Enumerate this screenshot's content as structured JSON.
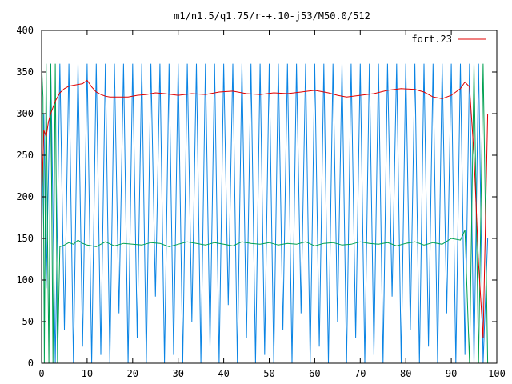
{
  "chart_data": {
    "type": "line",
    "title": "m1/n1.5/q1.75/r-+.10-j53/M50.0/512",
    "xlabel": "",
    "ylabel": "",
    "xlim": [
      0,
      100
    ],
    "ylim": [
      0,
      400
    ],
    "xticks": [
      "0",
      "10",
      "20",
      "30",
      "40",
      "50",
      "60",
      "70",
      "80",
      "90",
      "100"
    ],
    "yticks": [
      "0",
      "50",
      "100",
      "150",
      "200",
      "250",
      "300",
      "350",
      "400"
    ],
    "grid": false,
    "legend_position": "top-right",
    "series": [
      {
        "name": "fort.23",
        "color": "#e00000",
        "x": [
          0,
          0.5,
          1,
          1.5,
          2,
          3,
          4,
          5,
          6,
          7,
          8,
          9,
          10,
          11,
          12,
          13,
          14,
          15,
          17,
          19,
          21,
          23,
          25,
          27,
          30,
          33,
          36,
          39,
          42,
          45,
          48,
          51,
          54,
          57,
          60,
          63,
          65,
          67,
          70,
          73,
          76,
          79,
          82,
          84,
          86,
          88,
          90,
          92,
          93,
          94,
          95,
          96,
          97,
          98
        ],
        "y": [
          195,
          280,
          272,
          290,
          300,
          315,
          325,
          330,
          333,
          334,
          335,
          336,
          340,
          332,
          326,
          323,
          321,
          320,
          320,
          320,
          322,
          323,
          325,
          324,
          322,
          324,
          323,
          326,
          327,
          324,
          323,
          325,
          324,
          326,
          328,
          325,
          322,
          320,
          322,
          324,
          328,
          330,
          329,
          326,
          320,
          318,
          322,
          330,
          338,
          332,
          250,
          120,
          30,
          300
        ]
      },
      {
        "name": "",
        "color": "#00a050",
        "x": [
          0,
          0.3,
          0.6,
          1,
          1.3,
          1.6,
          2,
          2.5,
          3,
          3.5,
          4,
          5,
          6,
          7,
          8,
          9,
          10,
          12,
          14,
          16,
          18,
          20,
          22,
          24,
          26,
          28,
          30,
          32,
          34,
          36,
          38,
          40,
          42,
          44,
          46,
          48,
          50,
          52,
          54,
          56,
          58,
          60,
          62,
          64,
          66,
          68,
          70,
          72,
          74,
          76,
          78,
          80,
          82,
          84,
          86,
          88,
          90,
          92,
          93,
          94,
          95,
          96,
          97,
          98
        ],
        "y": [
          360,
          320,
          0,
          360,
          150,
          0,
          360,
          0,
          360,
          0,
          140,
          142,
          145,
          143,
          148,
          144,
          142,
          140,
          146,
          141,
          144,
          143,
          142,
          145,
          144,
          140,
          143,
          146,
          144,
          142,
          145,
          143,
          141,
          146,
          144,
          143,
          145,
          142,
          144,
          143,
          146,
          141,
          144,
          145,
          142,
          143,
          146,
          144,
          143,
          145,
          141,
          144,
          146,
          142,
          145,
          143,
          150,
          148,
          160,
          0,
          360,
          0,
          360,
          0
        ]
      },
      {
        "name": "",
        "color": "#0a84e4",
        "x": [
          0,
          0.5,
          1,
          2,
          3,
          4,
          5,
          6,
          7,
          8,
          9,
          10,
          11,
          12,
          13,
          14,
          15,
          16,
          17,
          18,
          19,
          20,
          21,
          22,
          23,
          24,
          25,
          26,
          27,
          28,
          29,
          30,
          31,
          32,
          33,
          34,
          35,
          36,
          37,
          38,
          39,
          40,
          41,
          42,
          43,
          44,
          45,
          46,
          47,
          48,
          49,
          50,
          51,
          52,
          53,
          54,
          55,
          56,
          57,
          58,
          59,
          60,
          61,
          62,
          63,
          64,
          65,
          66,
          67,
          68,
          69,
          70,
          71,
          72,
          73,
          74,
          75,
          76,
          77,
          78,
          79,
          80,
          81,
          82,
          83,
          84,
          85,
          86,
          87,
          88,
          89,
          90,
          91,
          92,
          93,
          94,
          95,
          96,
          97,
          98
        ],
        "y": [
          130,
          300,
          90,
          360,
          0,
          360,
          40,
          360,
          0,
          360,
          20,
          360,
          0,
          360,
          10,
          360,
          0,
          360,
          60,
          360,
          0,
          360,
          30,
          360,
          0,
          360,
          80,
          360,
          0,
          360,
          10,
          360,
          0,
          360,
          50,
          360,
          0,
          360,
          20,
          360,
          0,
          360,
          70,
          360,
          0,
          360,
          30,
          360,
          0,
          360,
          10,
          360,
          0,
          360,
          40,
          360,
          0,
          360,
          60,
          360,
          0,
          360,
          20,
          360,
          0,
          360,
          50,
          360,
          0,
          360,
          30,
          360,
          0,
          360,
          10,
          360,
          0,
          360,
          80,
          360,
          0,
          360,
          40,
          360,
          0,
          360,
          20,
          360,
          0,
          360,
          60,
          360,
          0,
          360,
          10,
          360,
          0,
          360,
          0,
          150
        ]
      }
    ]
  }
}
